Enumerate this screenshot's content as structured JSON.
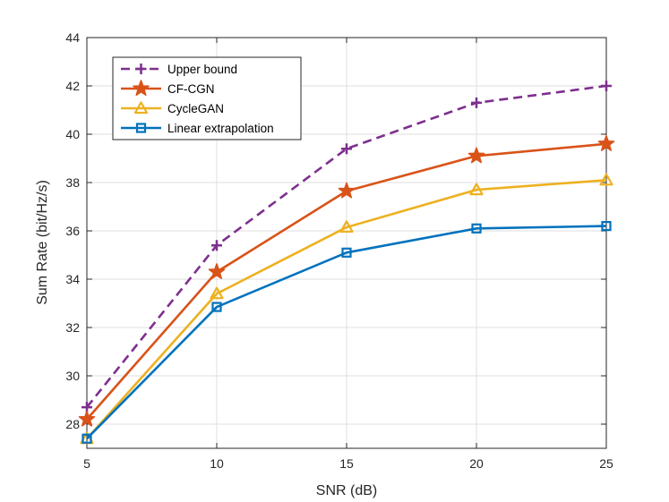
{
  "chart_data": {
    "type": "line",
    "xlabel": "SNR (dB)",
    "ylabel": "Sum Rate (bit/Hz/s)",
    "xlim": [
      5,
      25
    ],
    "ylim": [
      27,
      44
    ],
    "x_ticks": [
      5,
      10,
      15,
      20,
      25
    ],
    "y_ticks": [
      28,
      30,
      32,
      34,
      36,
      38,
      40,
      42,
      44
    ],
    "grid": true,
    "legend_position": "top-left",
    "x": [
      5,
      10,
      15,
      20,
      25
    ],
    "series": [
      {
        "name": "Upper bound",
        "values": [
          28.7,
          35.4,
          39.4,
          41.3,
          42.0
        ],
        "color": "#7E2F8E",
        "marker": "plus",
        "dash": true
      },
      {
        "name": "CF-CGN",
        "values": [
          28.2,
          34.3,
          37.65,
          39.1,
          39.6
        ],
        "color": "#D95319",
        "marker": "star",
        "dash": false
      },
      {
        "name": "CycleGAN",
        "values": [
          27.4,
          33.4,
          36.15,
          37.7,
          38.1
        ],
        "color": "#EDB120",
        "marker": "triangle",
        "dash": false
      },
      {
        "name": "Linear extrapolation",
        "values": [
          27.4,
          32.85,
          35.1,
          36.1,
          36.2
        ],
        "color": "#0072BD",
        "marker": "square",
        "dash": false
      }
    ]
  }
}
